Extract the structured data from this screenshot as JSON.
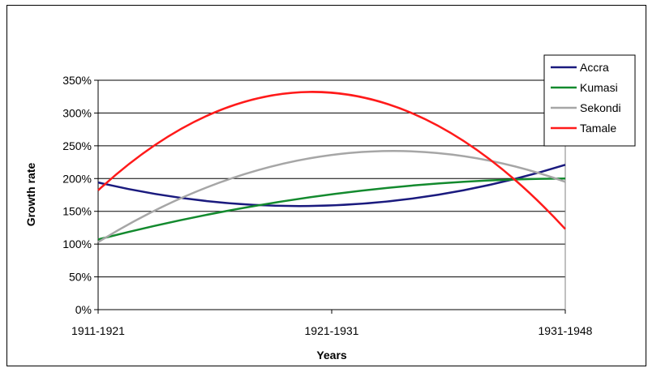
{
  "chart_data": {
    "type": "line",
    "title": "",
    "xlabel": "Years",
    "ylabel": "Growth rate",
    "categories": [
      "1911-1921",
      "1921-1931",
      "1931-1948"
    ],
    "y_ticks": [
      "0%",
      "50%",
      "100%",
      "150%",
      "200%",
      "250%",
      "300%",
      "350%"
    ],
    "ylim": [
      0,
      350
    ],
    "y_unit": "%",
    "grid": "horizontal",
    "smoothed": true,
    "legend_position": "top-right",
    "series": [
      {
        "name": "Accra",
        "color": "#1a1a7e",
        "values": [
          194,
          159,
          221
        ]
      },
      {
        "name": "Kumasi",
        "color": "#138a2e",
        "values": [
          107,
          176,
          200
        ]
      },
      {
        "name": "Sekondi",
        "color": "#a6a6a6",
        "values": [
          103,
          236,
          195
        ]
      },
      {
        "name": "Tamale",
        "color": "#ff1a1a",
        "values": [
          182,
          331,
          123
        ]
      }
    ]
  }
}
